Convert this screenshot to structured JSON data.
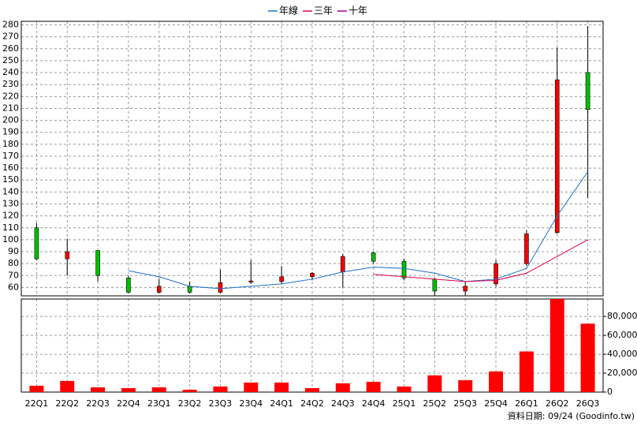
{
  "chart_data": {
    "type": "candlestick",
    "categories": [
      "22Q1",
      "22Q2",
      "22Q3",
      "22Q4",
      "23Q1",
      "23Q2",
      "23Q3",
      "23Q4",
      "24Q1",
      "24Q2",
      "24Q3",
      "24Q4",
      "25Q1",
      "25Q2",
      "25Q3",
      "25Q4",
      "26Q1",
      "26Q2",
      "26Q3"
    ],
    "open": [
      110,
      84,
      91,
      68,
      56,
      61,
      56,
      65,
      65,
      69,
      73,
      89,
      82,
      67,
      57,
      63,
      80,
      106,
      240
    ],
    "high": [
      114,
      101,
      91,
      70,
      67,
      65,
      75,
      83,
      78,
      73,
      88,
      90,
      84,
      68,
      65,
      83,
      108,
      261,
      279
    ],
    "low": [
      83,
      70,
      65,
      55,
      55,
      55,
      55,
      63,
      63,
      66,
      60,
      80,
      66,
      53,
      53,
      61,
      78,
      105,
      135
    ],
    "close": [
      84,
      90,
      70,
      56,
      61,
      56,
      64,
      65.5,
      69,
      72,
      86,
      82,
      68,
      57,
      61,
      80,
      105,
      234,
      209
    ],
    "up_color": "#ff0000",
    "down_color": "#00c000",
    "series": [
      {
        "name": "年線",
        "color": "#1e6fc8",
        "values": [
          null,
          null,
          null,
          74,
          69,
          61,
          59,
          61,
          63,
          67,
          73,
          77,
          76,
          72,
          65,
          67,
          76,
          120,
          157
        ]
      },
      {
        "name": "三年",
        "color": "#e0004a",
        "values": [
          null,
          null,
          null,
          null,
          null,
          null,
          null,
          null,
          null,
          null,
          null,
          71,
          69,
          67,
          65,
          66,
          72,
          86,
          100
        ]
      },
      {
        "name": "十年",
        "color": "#a000a0",
        "values": [
          null,
          null,
          null,
          null,
          null,
          null,
          null,
          null,
          null,
          null,
          null,
          null,
          null,
          null,
          null,
          null,
          null,
          null,
          null
        ]
      }
    ],
    "ylim": [
      53,
      283
    ],
    "yticks": [
      60,
      70,
      80,
      90,
      100,
      110,
      120,
      130,
      140,
      150,
      160,
      170,
      180,
      190,
      200,
      210,
      220,
      230,
      240,
      250,
      260,
      270,
      280
    ],
    "volume": {
      "values": [
        6700,
        11800,
        5000,
        4200,
        5000,
        2500,
        5900,
        10100,
        10100,
        4200,
        9300,
        10900,
        5900,
        17700,
        12600,
        21900,
        43000,
        98500,
        72400
      ],
      "color": "#ff0000",
      "ylim": [
        0,
        98500
      ],
      "yticks": [
        0,
        {
          "value": 20000,
          "label": "20,000"
        },
        {
          "value": 40000,
          "label": "40,000"
        },
        {
          "value": 60000,
          "label": "60,000"
        },
        {
          "value": 80000,
          "label": "80,000"
        }
      ]
    },
    "grid": true,
    "source": "資料日期: 09/24 (Goodinfo.tw)"
  }
}
